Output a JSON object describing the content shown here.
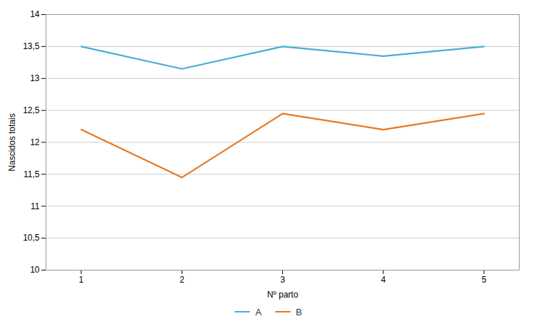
{
  "chart_data": {
    "type": "line",
    "x": [
      1,
      2,
      3,
      4,
      5
    ],
    "series": [
      {
        "name": "A",
        "color": "#4BADD4",
        "values": [
          13.5,
          13.15,
          13.5,
          13.35,
          13.5
        ]
      },
      {
        "name": "B",
        "color": "#E8781E",
        "values": [
          12.2,
          11.45,
          12.45,
          12.2,
          12.45
        ]
      }
    ],
    "xlabel": "Nº parto",
    "ylabel": "Nascidos totais",
    "xlim": [
      0.65,
      5.35
    ],
    "xticks": [
      1,
      2,
      3,
      4,
      5
    ],
    "ylim": [
      10,
      14
    ],
    "yticks": [
      10,
      {
        "value": 10.5,
        "label": "10,5"
      },
      11,
      {
        "value": 11.5,
        "label": "11,5"
      },
      12,
      {
        "value": 12.5,
        "label": "12,5"
      },
      13,
      {
        "value": 13.5,
        "label": "13,5"
      },
      14
    ],
    "grid": "y",
    "legend": "bottom"
  }
}
